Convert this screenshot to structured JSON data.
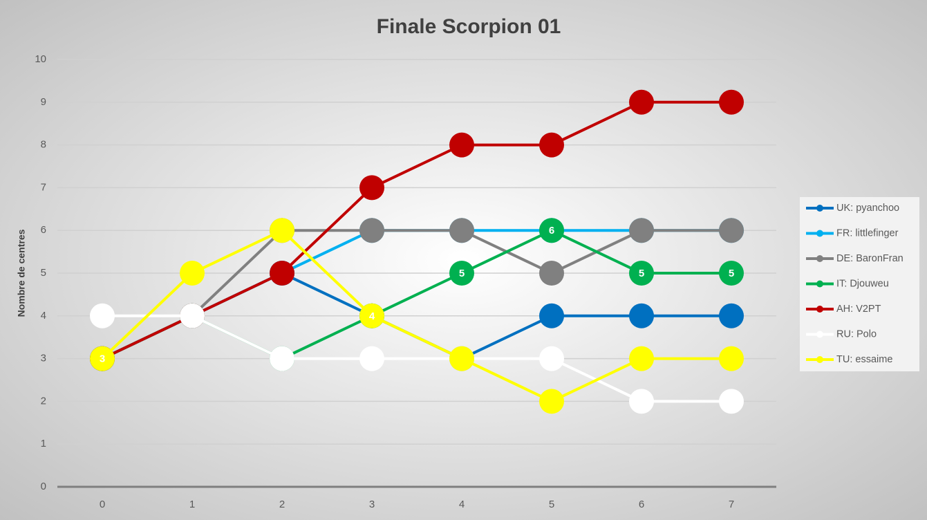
{
  "chart_data": {
    "type": "line",
    "title": "Finale Scorpion 01",
    "y_label": "Nombre de centres",
    "x": [
      0,
      1,
      2,
      3,
      4,
      5,
      6,
      7
    ],
    "xlim": [
      -0.5,
      7.5
    ],
    "xticks": [
      0,
      1,
      2,
      3,
      4,
      5,
      6,
      7
    ],
    "ylim": [
      0,
      10
    ],
    "yticks": [
      0,
      1,
      2,
      3,
      4,
      5,
      6,
      7,
      8,
      9,
      10
    ],
    "grid": true,
    "legend": "right",
    "series": [
      {
        "name": "UK: pyanchoo",
        "color": "#0070c0",
        "values": [
          3,
          4,
          5,
          4,
          3,
          4,
          4,
          4
        ]
      },
      {
        "name": "FR: littlefinger",
        "color": "#00b0f0",
        "values": [
          3,
          4,
          5,
          6,
          6,
          6,
          6,
          6
        ]
      },
      {
        "name": "DE: BaronFran",
        "color": "#808080",
        "values": [
          3,
          4,
          6,
          6,
          6,
          5,
          6,
          6
        ]
      },
      {
        "name": "IT: Djouweu",
        "color": "#00b050",
        "values": [
          3,
          4,
          3,
          4,
          5,
          6,
          5,
          5
        ],
        "value_labels": [
          null,
          null,
          null,
          null,
          5,
          6,
          5,
          5
        ]
      },
      {
        "name": "AH: V2PT",
        "color": "#c00000",
        "values": [
          3,
          4,
          5,
          7,
          8,
          8,
          9,
          9
        ]
      },
      {
        "name": "RU: Polo",
        "color": "#ffffff",
        "values": [
          4,
          4,
          3,
          3,
          3,
          3,
          2,
          2
        ]
      },
      {
        "name": "TU: essaime",
        "color": "#ffff00",
        "values": [
          3,
          5,
          6,
          4,
          3,
          2,
          3,
          3
        ],
        "value_labels": [
          3,
          null,
          null,
          4,
          null,
          null,
          null,
          null
        ]
      }
    ]
  }
}
